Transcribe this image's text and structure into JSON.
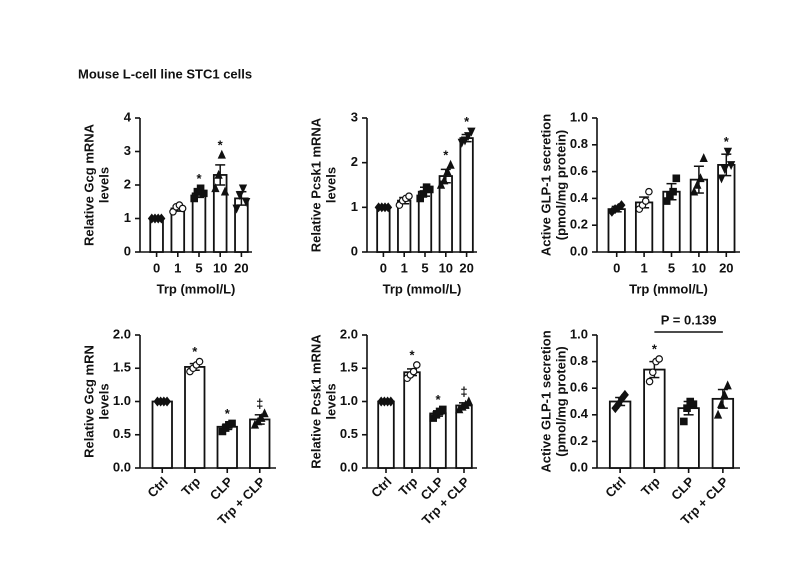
{
  "figure_title": "Mouse L-cell line STC1 cells",
  "chart_data": [
    {
      "type": "bar",
      "ylabel": [
        "Relative Gcg mRNA",
        "levels"
      ],
      "xlabel": "Trp (mmol/L)",
      "categories": [
        "0",
        "1",
        "5",
        "10",
        "20"
      ],
      "values": [
        1.0,
        1.3,
        1.75,
        2.3,
        1.6
      ],
      "errors": [
        0.02,
        0.08,
        0.12,
        0.3,
        0.2
      ],
      "points": [
        [
          1,
          1,
          1,
          1
        ],
        [
          1.2,
          1.35,
          1.4,
          1.3
        ],
        [
          1.6,
          1.8,
          1.9,
          1.75
        ],
        [
          1.9,
          2.3,
          2.9,
          1.8
        ],
        [
          1.3,
          1.7,
          1.9,
          1.5
        ]
      ],
      "significance": [
        null,
        null,
        "*",
        "*",
        null
      ],
      "ylim": [
        0,
        4
      ],
      "yticks": [
        0,
        1,
        2,
        3,
        4
      ]
    },
    {
      "type": "bar",
      "ylabel": [
        "Relative Pcsk1 mRNA",
        "levels"
      ],
      "xlabel": "Trp (mmol/L)",
      "categories": [
        "0",
        "1",
        "5",
        "10",
        "20"
      ],
      "values": [
        1.0,
        1.15,
        1.35,
        1.7,
        2.55
      ],
      "errors": [
        0.01,
        0.07,
        0.1,
        0.15,
        0.08
      ],
      "points": [
        [
          1,
          1,
          1,
          1
        ],
        [
          1.05,
          1.15,
          1.2,
          1.25
        ],
        [
          1.2,
          1.3,
          1.45,
          1.4
        ],
        [
          1.5,
          1.6,
          1.8,
          1.95
        ],
        [
          2.45,
          2.5,
          2.6,
          2.7
        ]
      ],
      "significance": [
        null,
        null,
        null,
        "*",
        "*"
      ],
      "ylim": [
        0,
        3
      ],
      "yticks": [
        0,
        1,
        2,
        3
      ]
    },
    {
      "type": "bar",
      "ylabel": [
        "Active GLP-1 secretion",
        "(pmol/mg protein)"
      ],
      "xlabel": "Trp (mmol/L)",
      "categories": [
        "0",
        "1",
        "5",
        "10",
        "20"
      ],
      "values": [
        0.32,
        0.37,
        0.45,
        0.54,
        0.65
      ],
      "errors": [
        0.02,
        0.04,
        0.06,
        0.1,
        0.08
      ],
      "points": [
        [
          0.3,
          0.32,
          0.33,
          0.35
        ],
        [
          0.32,
          0.35,
          0.38,
          0.45
        ],
        [
          0.38,
          0.42,
          0.45,
          0.55
        ],
        [
          0.45,
          0.5,
          0.55,
          0.7
        ],
        [
          0.55,
          0.62,
          0.75,
          0.65
        ]
      ],
      "significance": [
        null,
        null,
        null,
        null,
        "*"
      ],
      "ylim": [
        0,
        1
      ],
      "yticks": [
        {
          "value": 0,
          "label": "0.0"
        },
        0.2,
        0.4,
        0.6,
        0.8,
        {
          "value": 1,
          "label": "1.0"
        }
      ]
    },
    {
      "type": "bar",
      "ylabel": [
        "Relative Gcg mRN",
        "levels"
      ],
      "categories": [
        "Ctrl",
        "Trp",
        "CLP",
        "Trp + CLP"
      ],
      "values": [
        1.0,
        1.52,
        0.62,
        0.73
      ],
      "errors": [
        0.01,
        0.05,
        0.04,
        0.07
      ],
      "points": [
        [
          1,
          1,
          1,
          1
        ],
        [
          1.45,
          1.5,
          1.55,
          1.6
        ],
        [
          0.55,
          0.6,
          0.65,
          0.67
        ],
        [
          0.65,
          0.7,
          0.75,
          0.82
        ]
      ],
      "significance": [
        null,
        "*",
        "*",
        "‡"
      ],
      "ylim": [
        0,
        2
      ],
      "yticks": [
        {
          "value": 0,
          "label": "0.0"
        },
        0.5,
        {
          "value": 1,
          "label": "1.0"
        },
        1.5,
        {
          "value": 2,
          "label": "2.0"
        }
      ]
    },
    {
      "type": "bar",
      "ylabel": [
        "Relative Pcsk1 mRNA",
        "levels"
      ],
      "categories": [
        "Ctrl",
        "Trp",
        "CLP",
        "Trp + CLP"
      ],
      "values": [
        1.0,
        1.44,
        0.82,
        0.94
      ],
      "errors": [
        0.01,
        0.05,
        0.04,
        0.04
      ],
      "points": [
        [
          1,
          1,
          1,
          1
        ],
        [
          1.35,
          1.4,
          1.45,
          1.55
        ],
        [
          0.75,
          0.8,
          0.85,
          0.88
        ],
        [
          0.88,
          0.92,
          0.95,
          1.0
        ]
      ],
      "significance": [
        null,
        "*",
        "*",
        "‡"
      ],
      "ylim": [
        0,
        2
      ],
      "yticks": [
        {
          "value": 0,
          "label": "0.0"
        },
        0.5,
        {
          "value": 1,
          "label": "1.0"
        },
        1.5,
        {
          "value": 2,
          "label": "2.0"
        }
      ]
    },
    {
      "type": "bar",
      "ylabel": [
        "Active GLP-1 secretion",
        "(pmol/mg protein)"
      ],
      "categories": [
        "Ctrl",
        "Trp",
        "CLP",
        "Trp + CLP"
      ],
      "values": [
        0.5,
        0.74,
        0.45,
        0.52
      ],
      "errors": [
        0.03,
        0.06,
        0.05,
        0.07
      ],
      "points": [
        [
          0.45,
          0.48,
          0.52,
          0.55
        ],
        [
          0.65,
          0.72,
          0.8,
          0.82
        ],
        [
          0.35,
          0.45,
          0.5,
          0.48
        ],
        [
          0.4,
          0.48,
          0.55,
          0.62
        ]
      ],
      "significance": [
        null,
        "*",
        null,
        null
      ],
      "bracket_label": "P = 0.139",
      "ylim": [
        0,
        1
      ],
      "yticks": [
        {
          "value": 0,
          "label": "0.0"
        },
        0.2,
        0.4,
        0.6,
        0.8,
        {
          "value": 1,
          "label": "1.0"
        }
      ]
    }
  ]
}
